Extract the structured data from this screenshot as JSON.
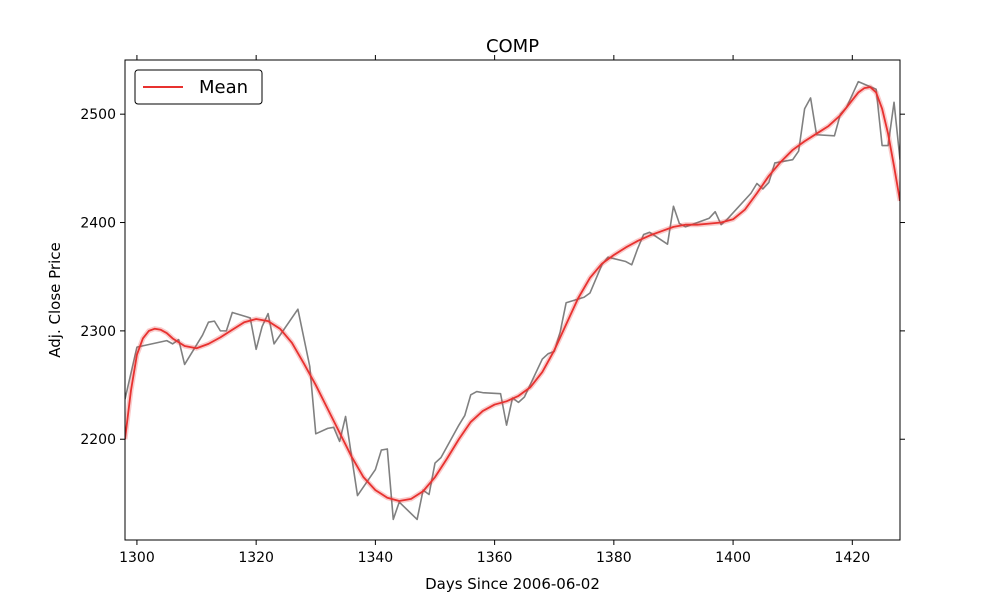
{
  "chart_data": {
    "type": "line",
    "title": "COMP",
    "xlabel": "Days Since 2006-06-02",
    "ylabel": "Adj. Close Price",
    "xlim": [
      1298,
      1428
    ],
    "ylim": [
      2107,
      2550
    ],
    "x_ticks": [
      1300,
      1320,
      1340,
      1360,
      1380,
      1400,
      1420
    ],
    "y_ticks": [
      2200,
      2300,
      2400,
      2500
    ],
    "grid": false,
    "legend": {
      "position": "upper-left",
      "entries": [
        "Mean"
      ]
    },
    "series": [
      {
        "name": "",
        "color": "#808080",
        "x": [
          1298,
          1300,
          1305,
          1306,
          1307,
          1308,
          1311,
          1312,
          1313,
          1314,
          1315,
          1316,
          1319,
          1320,
          1321,
          1322,
          1323,
          1327,
          1329,
          1330,
          1332,
          1333,
          1334,
          1335,
          1337,
          1340,
          1341,
          1342,
          1343,
          1344,
          1347,
          1348,
          1349,
          1350,
          1351,
          1354,
          1355,
          1356,
          1357,
          1358,
          1361,
          1362,
          1363,
          1364,
          1365,
          1368,
          1369,
          1370,
          1371,
          1372,
          1375,
          1376,
          1377,
          1378,
          1379,
          1382,
          1383,
          1384,
          1385,
          1386,
          1389,
          1390,
          1391,
          1392,
          1393,
          1396,
          1397,
          1398,
          1399,
          1400,
          1403,
          1404,
          1405,
          1406,
          1407,
          1410,
          1411,
          1412,
          1413,
          1414,
          1417,
          1418,
          1419,
          1420,
          1421,
          1424,
          1425,
          1426,
          1427,
          1428
        ],
        "y": [
          2237,
          2285,
          2291,
          2288,
          2292,
          2269,
          2296,
          2308,
          2309,
          2300,
          2300,
          2317,
          2312,
          2283,
          2304,
          2316,
          2288,
          2320,
          2267,
          2205,
          2210,
          2211,
          2198,
          2221,
          2148,
          2172,
          2190,
          2191,
          2126,
          2142,
          2126,
          2153,
          2149,
          2178,
          2183,
          2213,
          2222,
          2241,
          2244,
          2243,
          2242,
          2213,
          2238,
          2234,
          2239,
          2274,
          2279,
          2281,
          2299,
          2326,
          2331,
          2335,
          2348,
          2361,
          2368,
          2364,
          2361,
          2376,
          2389,
          2391,
          2380,
          2415,
          2399,
          2396,
          2398,
          2404,
          2410,
          2398,
          2403,
          2409,
          2427,
          2436,
          2431,
          2437,
          2455,
          2458,
          2466,
          2505,
          2515,
          2481,
          2480,
          2500,
          2506,
          2518,
          2530,
          2523,
          2471,
          2471,
          2511,
          2458
        ]
      },
      {
        "name": "Mean",
        "color": "#e8312f",
        "x": [
          1298,
          1299,
          1300,
          1301,
          1302,
          1303,
          1304,
          1305,
          1306,
          1308,
          1310,
          1312,
          1314,
          1316,
          1318,
          1320,
          1322,
          1324,
          1326,
          1328,
          1330,
          1332,
          1334,
          1336,
          1338,
          1340,
          1342,
          1344,
          1346,
          1348,
          1350,
          1352,
          1354,
          1356,
          1358,
          1360,
          1362,
          1364,
          1366,
          1368,
          1370,
          1372,
          1374,
          1376,
          1378,
          1380,
          1382,
          1384,
          1386,
          1388,
          1390,
          1392,
          1394,
          1396,
          1398,
          1400,
          1402,
          1404,
          1406,
          1408,
          1410,
          1412,
          1414,
          1416,
          1418,
          1420,
          1421,
          1422,
          1423,
          1424,
          1425,
          1426,
          1427,
          1428
        ],
        "y": [
          2200,
          2245,
          2278,
          2293,
          2300,
          2302,
          2301,
          2298,
          2293,
          2286,
          2284,
          2288,
          2294,
          2301,
          2308,
          2311,
          2309,
          2302,
          2289,
          2270,
          2250,
          2228,
          2206,
          2184,
          2165,
          2153,
          2146,
          2143,
          2145,
          2152,
          2165,
          2182,
          2200,
          2216,
          2226,
          2232,
          2235,
          2240,
          2248,
          2262,
          2282,
          2306,
          2330,
          2349,
          2362,
          2370,
          2377,
          2383,
          2388,
          2392,
          2396,
          2398,
          2398,
          2399,
          2400,
          2403,
          2412,
          2427,
          2443,
          2456,
          2467,
          2475,
          2482,
          2489,
          2499,
          2513,
          2520,
          2524,
          2525,
          2520,
          2505,
          2482,
          2452,
          2420
        ]
      }
    ]
  }
}
